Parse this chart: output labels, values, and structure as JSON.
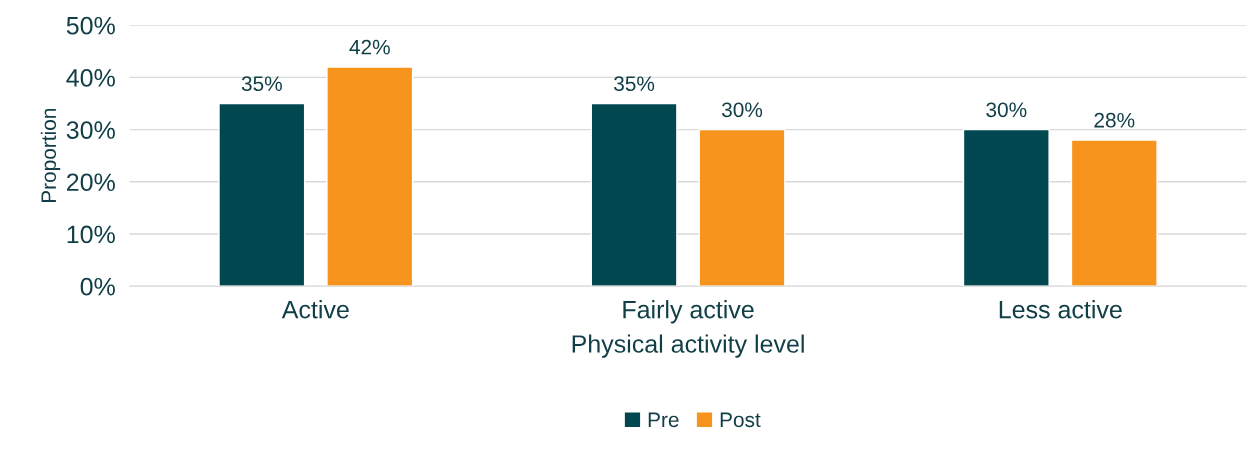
{
  "chart_data": {
    "type": "bar",
    "xlabel": "Physical activity level",
    "ylabel": "Proportion",
    "categories": [
      "Active",
      "Fairly active",
      "Less active"
    ],
    "series": [
      {
        "name": "Pre",
        "color": "#00474f",
        "values": [
          35,
          35,
          30
        ],
        "value_labels": [
          "35%",
          "35%",
          "30%"
        ]
      },
      {
        "name": "Post",
        "color": "#f7941d",
        "values": [
          42,
          30,
          28
        ],
        "value_labels": [
          "42%",
          "30%",
          "28%"
        ]
      }
    ],
    "ylim": [
      0,
      50
    ],
    "yticks": [
      {
        "value": 0,
        "label": "0%"
      },
      {
        "value": 10,
        "label": "10%"
      },
      {
        "value": 20,
        "label": "20%"
      },
      {
        "value": 30,
        "label": "30%"
      },
      {
        "value": 40,
        "label": "40%"
      },
      {
        "value": 50,
        "label": "50%"
      }
    ],
    "grid": "y",
    "legend": "bottom"
  }
}
